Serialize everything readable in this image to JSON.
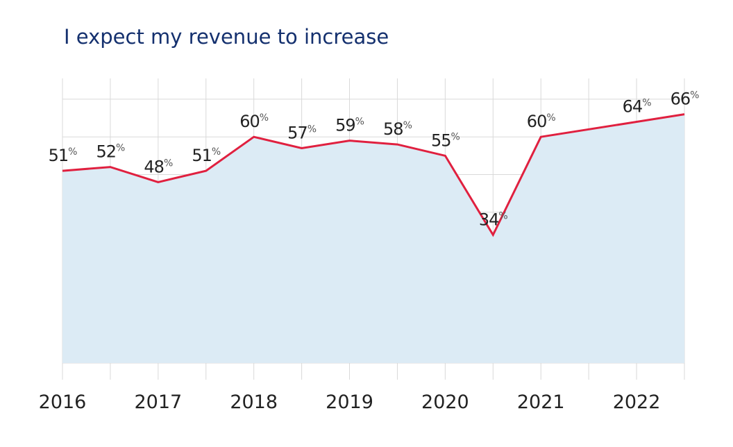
{
  "chart_data": {
    "type": "area",
    "title": "I expect my revenue to increase",
    "xlabel": "",
    "ylabel": "",
    "x_ticks": [
      "2016",
      "2017",
      "2018",
      "2019",
      "2020",
      "2021",
      "2022"
    ],
    "x": [
      2016,
      2016.5,
      2017,
      2017.5,
      2018,
      2018.5,
      2019,
      2019.5,
      2020,
      2020.5,
      2021,
      2022,
      2022.5
    ],
    "series": [
      {
        "values": [
          51,
          52,
          48,
          51,
          60,
          57,
          59,
          58,
          55,
          34,
          60,
          64,
          66
        ],
        "labels": [
          "51",
          "52",
          "48",
          "51",
          "60",
          "57",
          "59",
          "58",
          "55",
          "34",
          "60",
          "64",
          "66"
        ]
      }
    ],
    "value_suffix": "%",
    "xlim": [
      2016,
      2022.5
    ],
    "ylim": [
      0,
      75
    ],
    "grid": true,
    "y_tick_labels_shown": false,
    "colors": {
      "line": "#e0203f",
      "fill": "#dcebf5",
      "grid": "#d9d9d9",
      "title": "#14306e"
    }
  }
}
